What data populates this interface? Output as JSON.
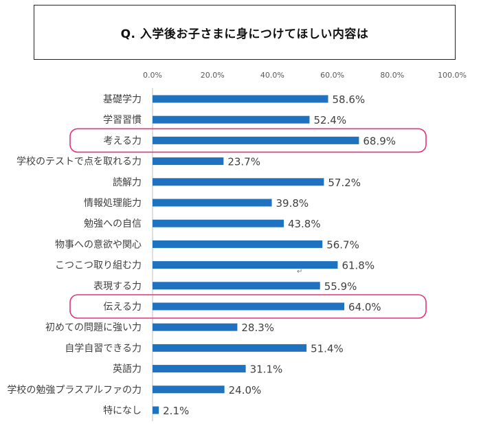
{
  "title": "Q. 入学後お子さまに身につけてほしい内容は",
  "chart_data": {
    "type": "bar",
    "orientation": "horizontal",
    "title": "Q. 入学後お子さまに身につけてほしい内容は",
    "xlim": [
      0,
      100
    ],
    "ticks": [
      "0.0%",
      "20.0%",
      "40.0%",
      "60.0%",
      "80.0%",
      "100.0%"
    ],
    "tick_values": [
      0,
      20,
      40,
      60,
      80,
      100
    ],
    "bar_color": "#1f72c0",
    "highlight_color": "#e0337a",
    "categories": [
      "基礎学力",
      "学習習慣",
      "考える力",
      "学校のテストで点を取れる力",
      "読解力",
      "情報処理能力",
      "勉強への自信",
      "物事への意欲や関心",
      "こつこつ取り組む力",
      "表現する力",
      "伝える力",
      "初めての問題に強い力",
      "自学自習できる力",
      "英語力",
      "学校の勉強プラスアルファの力",
      "特になし"
    ],
    "values": [
      58.6,
      52.4,
      68.9,
      23.7,
      57.2,
      39.8,
      43.8,
      56.7,
      61.8,
      55.9,
      64.0,
      28.3,
      51.4,
      31.1,
      24.0,
      2.1
    ],
    "value_labels": [
      "58.6%",
      "52.4%",
      "68.9%",
      "23.7%",
      "57.2%",
      "39.8%",
      "43.8%",
      "56.7%",
      "61.8%",
      "55.9%",
      "64.0%",
      "28.3%",
      "51.4%",
      "31.1%",
      "24.0%",
      "2.1%"
    ],
    "highlighted": [
      "考える力",
      "伝える力"
    ],
    "grid": false,
    "legend": "none"
  },
  "stray_mark": "↵"
}
